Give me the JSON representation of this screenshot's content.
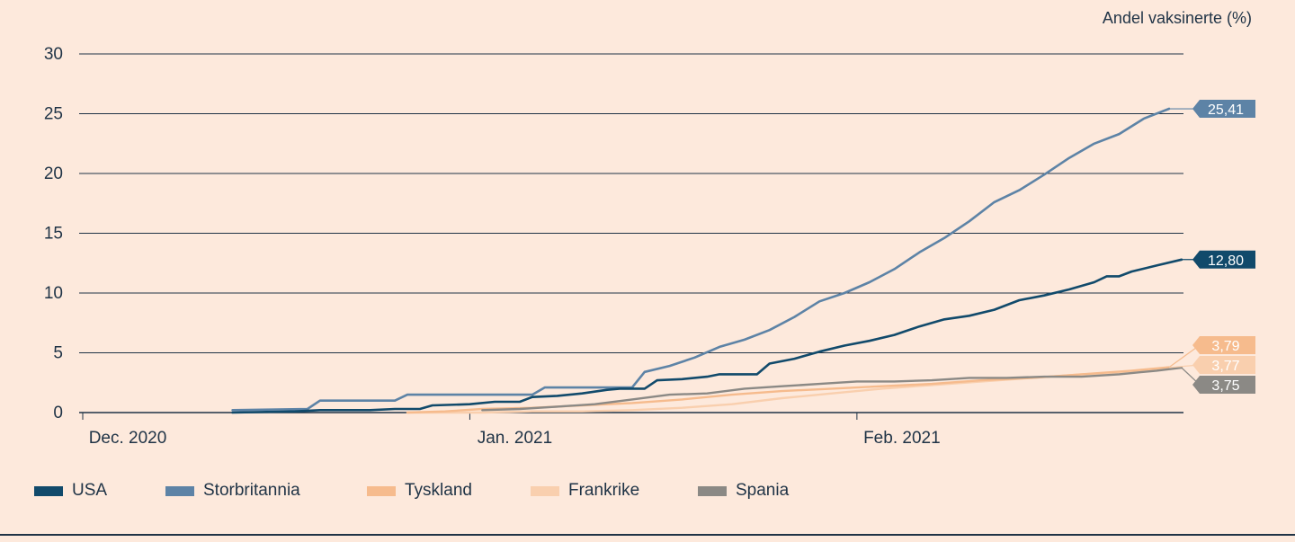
{
  "unit_label": "Andel vaksinerte (%)",
  "colors": {
    "USA": "#114a6b",
    "Storbritannia": "#5d83a6",
    "Tyskland": "#f6bb8d",
    "Frankrike": "#f9cfae",
    "Spania": "#8b8985",
    "grid": "#1f3346",
    "text": "#1f3346",
    "background": "#fde9dc"
  },
  "chart_data": {
    "type": "line",
    "title": "",
    "xlabel": "",
    "ylabel": "Andel vaksinerte (%)",
    "ylim": [
      0,
      30
    ],
    "yticks": [
      "0",
      "5",
      "10",
      "15",
      "20",
      "25",
      "30"
    ],
    "xlim": [
      "2020-12-01",
      "2021-02-26"
    ],
    "xticks": [
      {
        "date": "2020-12-01",
        "label": "Dec. 2020"
      },
      {
        "date": "2021-01-01",
        "label": "Jan. 2021"
      },
      {
        "date": "2021-02-01",
        "label": "Feb. 2021"
      }
    ],
    "grid": "horizontal",
    "legend": "bottom",
    "series": [
      {
        "name": "USA",
        "end_label": "12,80",
        "points": [
          [
            "2020-12-13",
            0.0
          ],
          [
            "2020-12-18",
            0.1
          ],
          [
            "2020-12-20",
            0.2
          ],
          [
            "2020-12-22",
            0.2
          ],
          [
            "2020-12-24",
            0.2
          ],
          [
            "2020-12-26",
            0.3
          ],
          [
            "2020-12-28",
            0.3
          ],
          [
            "2020-12-29",
            0.6
          ],
          [
            "2021-01-01",
            0.7
          ],
          [
            "2021-01-03",
            0.9
          ],
          [
            "2021-01-05",
            0.9
          ],
          [
            "2021-01-06",
            1.3
          ],
          [
            "2021-01-08",
            1.4
          ],
          [
            "2021-01-10",
            1.6
          ],
          [
            "2021-01-12",
            1.9
          ],
          [
            "2021-01-13",
            2.0
          ],
          [
            "2021-01-15",
            2.0
          ],
          [
            "2021-01-16",
            2.7
          ],
          [
            "2021-01-18",
            2.8
          ],
          [
            "2021-01-20",
            3.0
          ],
          [
            "2021-01-21",
            3.2
          ],
          [
            "2021-01-24",
            3.2
          ],
          [
            "2021-01-25",
            4.1
          ],
          [
            "2021-01-27",
            4.5
          ],
          [
            "2021-01-29",
            5.1
          ],
          [
            "2021-01-31",
            5.6
          ],
          [
            "2021-02-02",
            6.0
          ],
          [
            "2021-02-04",
            6.5
          ],
          [
            "2021-02-06",
            7.2
          ],
          [
            "2021-02-08",
            7.8
          ],
          [
            "2021-02-10",
            8.1
          ],
          [
            "2021-02-12",
            8.6
          ],
          [
            "2021-02-14",
            9.4
          ],
          [
            "2021-02-16",
            9.8
          ],
          [
            "2021-02-18",
            10.3
          ],
          [
            "2021-02-20",
            10.9
          ],
          [
            "2021-02-21",
            11.4
          ],
          [
            "2021-02-22",
            11.4
          ],
          [
            "2021-02-23",
            11.8
          ],
          [
            "2021-02-25",
            12.3
          ],
          [
            "2021-02-27",
            12.8
          ]
        ]
      },
      {
        "name": "Storbritannia",
        "end_label": "25,41",
        "points": [
          [
            "2020-12-13",
            0.2
          ],
          [
            "2020-12-19",
            0.3
          ],
          [
            "2020-12-20",
            1.0
          ],
          [
            "2020-12-26",
            1.0
          ],
          [
            "2020-12-27",
            1.5
          ],
          [
            "2021-01-03",
            1.5
          ],
          [
            "2021-01-06",
            1.5
          ],
          [
            "2021-01-07",
            2.1
          ],
          [
            "2021-01-13",
            2.1
          ],
          [
            "2021-01-14",
            2.1
          ],
          [
            "2021-01-15",
            3.4
          ],
          [
            "2021-01-17",
            3.9
          ],
          [
            "2021-01-19",
            4.6
          ],
          [
            "2021-01-21",
            5.5
          ],
          [
            "2021-01-23",
            6.1
          ],
          [
            "2021-01-25",
            6.9
          ],
          [
            "2021-01-27",
            8.0
          ],
          [
            "2021-01-29",
            9.3
          ],
          [
            "2021-01-31",
            10.0
          ],
          [
            "2021-02-02",
            10.9
          ],
          [
            "2021-02-04",
            12.0
          ],
          [
            "2021-02-06",
            13.4
          ],
          [
            "2021-02-08",
            14.6
          ],
          [
            "2021-02-10",
            16.0
          ],
          [
            "2021-02-12",
            17.6
          ],
          [
            "2021-02-14",
            18.6
          ],
          [
            "2021-02-16",
            19.9
          ],
          [
            "2021-02-18",
            21.3
          ],
          [
            "2021-02-20",
            22.5
          ],
          [
            "2021-02-22",
            23.3
          ],
          [
            "2021-02-24",
            24.6
          ],
          [
            "2021-02-26",
            25.41
          ]
        ]
      },
      {
        "name": "Tyskland",
        "end_label": "3,79",
        "points": [
          [
            "2020-12-27",
            0.0
          ],
          [
            "2020-12-30",
            0.1
          ],
          [
            "2021-01-02",
            0.3
          ],
          [
            "2021-01-06",
            0.4
          ],
          [
            "2021-01-10",
            0.6
          ],
          [
            "2021-01-14",
            0.8
          ],
          [
            "2021-01-18",
            1.1
          ],
          [
            "2021-01-22",
            1.5
          ],
          [
            "2021-01-26",
            1.8
          ],
          [
            "2021-01-30",
            2.0
          ],
          [
            "2021-02-03",
            2.2
          ],
          [
            "2021-02-07",
            2.4
          ],
          [
            "2021-02-11",
            2.7
          ],
          [
            "2021-02-15",
            2.9
          ],
          [
            "2021-02-19",
            3.2
          ],
          [
            "2021-02-23",
            3.5
          ],
          [
            "2021-02-26",
            3.79
          ]
        ]
      },
      {
        "name": "Frankrike",
        "end_label": "3,77",
        "points": [
          [
            "2020-12-27",
            0.0
          ],
          [
            "2021-01-02",
            0.0
          ],
          [
            "2021-01-06",
            0.1
          ],
          [
            "2021-01-10",
            0.1
          ],
          [
            "2021-01-14",
            0.2
          ],
          [
            "2021-01-18",
            0.4
          ],
          [
            "2021-01-22",
            0.7
          ],
          [
            "2021-01-26",
            1.2
          ],
          [
            "2021-01-30",
            1.6
          ],
          [
            "2021-02-03",
            2.0
          ],
          [
            "2021-02-07",
            2.3
          ],
          [
            "2021-02-11",
            2.6
          ],
          [
            "2021-02-15",
            2.9
          ],
          [
            "2021-02-19",
            3.2
          ],
          [
            "2021-02-23",
            3.4
          ],
          [
            "2021-02-26",
            3.77
          ]
        ]
      },
      {
        "name": "Spania",
        "end_label": "3,75",
        "points": [
          [
            "2021-01-02",
            0.2
          ],
          [
            "2021-01-05",
            0.3
          ],
          [
            "2021-01-08",
            0.5
          ],
          [
            "2021-01-11",
            0.7
          ],
          [
            "2021-01-14",
            1.1
          ],
          [
            "2021-01-17",
            1.5
          ],
          [
            "2021-01-20",
            1.6
          ],
          [
            "2021-01-23",
            2.0
          ],
          [
            "2021-01-26",
            2.2
          ],
          [
            "2021-01-29",
            2.4
          ],
          [
            "2021-02-01",
            2.6
          ],
          [
            "2021-02-04",
            2.6
          ],
          [
            "2021-02-07",
            2.7
          ],
          [
            "2021-02-10",
            2.9
          ],
          [
            "2021-02-13",
            2.9
          ],
          [
            "2021-02-16",
            3.0
          ],
          [
            "2021-02-19",
            3.0
          ],
          [
            "2021-02-22",
            3.2
          ],
          [
            "2021-02-25",
            3.5
          ],
          [
            "2021-02-27",
            3.75
          ]
        ]
      }
    ],
    "end_label_order": [
      "Tyskland",
      "Frankrike",
      "Spania"
    ]
  },
  "legend": {
    "items": [
      {
        "label": "USA"
      },
      {
        "label": "Storbritannia"
      },
      {
        "label": "Tyskland"
      },
      {
        "label": "Frankrike"
      },
      {
        "label": "Spania"
      }
    ]
  }
}
